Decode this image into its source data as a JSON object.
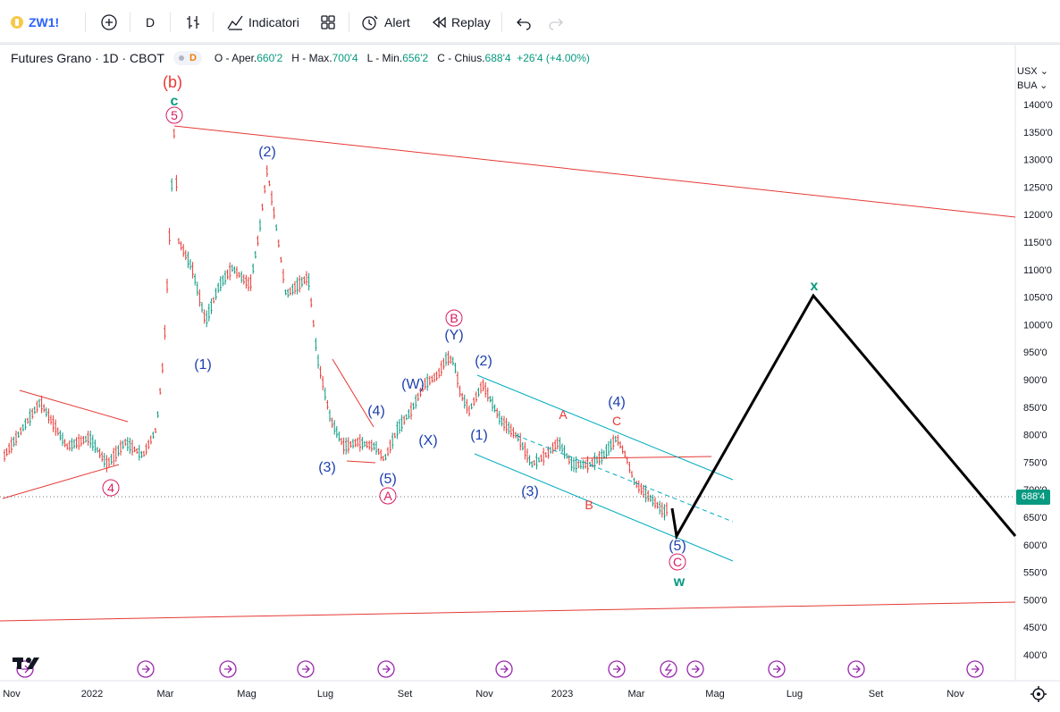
{
  "toolbar": {
    "symbol": "ZW1!",
    "interval": "D",
    "indicators_label": "Indicatori",
    "alert_label": "Alert",
    "replay_label": "Replay"
  },
  "legend": {
    "title": "Futures Grano · 1D · CBOT",
    "badge": "D",
    "open_label": "O - Aper.",
    "open": "660'2",
    "high_label": "H - Max.",
    "high": "700'4",
    "low_label": "L - Min.",
    "low": "656'2",
    "close_label": "C - Chius.",
    "close": "688'4",
    "change": "+26'4 (+4.00%)"
  },
  "price_axis": {
    "currency": "USX",
    "unit": "BUA",
    "current_price": "688'4",
    "ticks": [
      "1400'0",
      "1350'0",
      "1300'0",
      "1250'0",
      "1200'0",
      "1150'0",
      "1100'0",
      "1050'0",
      "1000'0",
      "950'0",
      "900'0",
      "850'0",
      "800'0",
      "750'0",
      "700'0",
      "650'0",
      "600'0",
      "550'0",
      "500'0",
      "450'0",
      "400'0"
    ]
  },
  "time_axis": {
    "labels": [
      "Nov",
      "2022",
      "Mar",
      "Mag",
      "Lug",
      "Set",
      "Nov",
      "2023",
      "Mar",
      "Mag",
      "Lug",
      "Set",
      "Nov"
    ]
  },
  "annotations": {
    "b_paren": "(b)",
    "c_top": "c",
    "c5": "5",
    "w2_top": "(2)",
    "w1_left": "(1)",
    "w3_left": "(3)",
    "w4_left": "(4)",
    "w5_left": "(5)",
    "A_circle": "A",
    "c4": "4",
    "W": "(W)",
    "X": "(X)",
    "Y": "(Y)",
    "B_circle": "B",
    "w2_mid": "(2)",
    "w1_mid": "(1)",
    "w3_mid": "(3)",
    "w4_mid": "(4)",
    "A_red": "A",
    "C_red": "C",
    "B_red": "B",
    "w5_end": "(5)",
    "C_circle": "C",
    "w_green": "w",
    "x_teal": "x"
  },
  "colors": {
    "accent_blue": "#1e40af",
    "red": "#e53935",
    "pink": "#d81b60",
    "green": "#089981",
    "teal": "#00acc1",
    "up_candle": "#089981",
    "down_candle": "#e53935"
  },
  "icons": [
    "plus-circle-icon",
    "bars-icon",
    "indicators-icon",
    "layout-icon",
    "alert-clock-icon",
    "replay-icon",
    "undo-icon",
    "redo-icon",
    "tradingview-logo-icon",
    "gear-icon",
    "event-icon"
  ]
}
